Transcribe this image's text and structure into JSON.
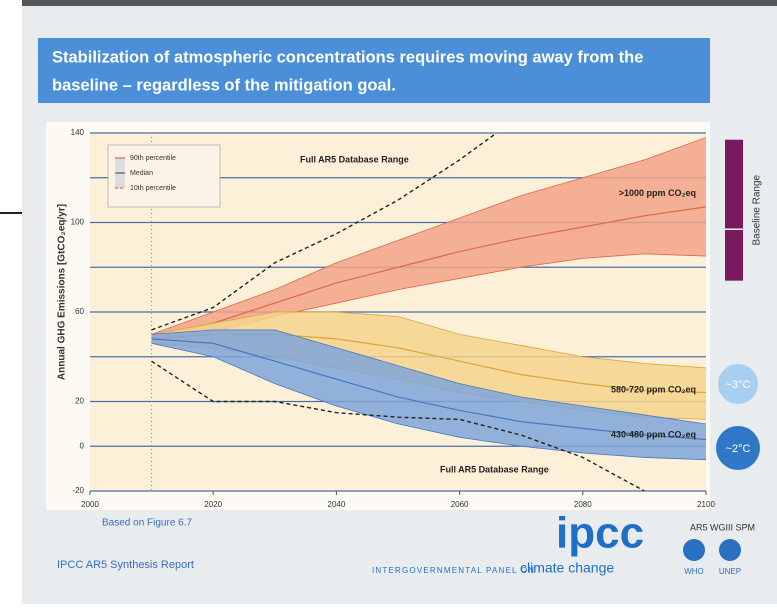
{
  "slide": {
    "title_lines": [
      "Stabilization of atmospheric concentrations requires moving away from the",
      "baseline – regardless of the mitigation goal."
    ],
    "source_note": "Based on Figure 6.7",
    "report": "IPCC AR5 Synthesis Report",
    "logo": "ipcc",
    "panel_text": "INTERGOVERNMENTAL PANEL ON",
    "panel_text_emphasis": "climate change",
    "spm": "AR5 WGIII SPM",
    "org_1": "WHO",
    "org_2": "UNEP",
    "temp_high": "~3°C",
    "temp_low": "~2°C"
  },
  "chart_data": {
    "type": "band",
    "y_label": "Annual GHG Emissions [GtCO₂eq/yr]",
    "x": [
      2010,
      2020,
      2030,
      2040,
      2050,
      2060,
      2070,
      2080,
      2090,
      2100
    ],
    "xlim": [
      2000,
      2100
    ],
    "xticks": [
      2000,
      2020,
      2040,
      2060,
      2080,
      2100
    ],
    "ylim": [
      -20,
      140
    ],
    "yticks": [
      -20,
      0,
      20,
      60,
      100,
      140
    ],
    "minor_yticks": [
      40,
      80,
      120
    ],
    "grid": true,
    "reference_x": 2010,
    "legend": [
      "90th percentile",
      "Median",
      "10th percentile"
    ],
    "series": [
      {
        "name": ">1000 ppm CO₂eq",
        "color": "#f2a387",
        "line_color": "#d9694d",
        "upper": [
          50,
          60,
          70,
          82,
          92,
          102,
          112,
          120,
          128,
          138
        ],
        "median": [
          48,
          55,
          64,
          73,
          80,
          87,
          93,
          98,
          103,
          107
        ],
        "lower": [
          46,
          51,
          58,
          64,
          70,
          75,
          80,
          84,
          86,
          85
        ]
      },
      {
        "name": "580-720 ppm CO₂eq",
        "color": "#f5d38d",
        "line_color": "#d9a43c",
        "upper": [
          50,
          55,
          60,
          60,
          58,
          50,
          45,
          40,
          37,
          35
        ],
        "median": [
          48,
          50,
          50,
          48,
          44,
          38,
          32,
          28,
          25,
          24
        ],
        "lower": [
          46,
          44,
          40,
          35,
          30,
          24,
          20,
          16,
          13,
          12
        ]
      },
      {
        "name": "430-480 ppm CO₂eq",
        "color": "#7fa6d9",
        "line_color": "#4a76bf",
        "upper": [
          50,
          52,
          52,
          44,
          36,
          28,
          22,
          18,
          14,
          10
        ],
        "median": [
          48,
          46,
          38,
          30,
          22,
          16,
          11,
          8,
          5,
          3
        ],
        "lower": [
          46,
          40,
          28,
          18,
          10,
          4,
          0,
          -3,
          -5,
          -6
        ]
      }
    ],
    "ranges": [
      {
        "name": "Full AR5 Database Range",
        "x": [
          2010,
          2020,
          2030,
          2040,
          2050,
          2060,
          2066
        ],
        "values": [
          52,
          62,
          82,
          95,
          110,
          128,
          140
        ]
      },
      {
        "name": "Full AR5 Database Range",
        "x": [
          2010,
          2020,
          2030,
          2040,
          2050,
          2060,
          2070,
          2080,
          2090
        ],
        "values": [
          38,
          20,
          20,
          15,
          13,
          12,
          5,
          -5,
          -20
        ]
      }
    ],
    "baseline_range": {
      "label": "Baseline Range",
      "color": "#7a1a5e",
      "low": 74,
      "high": 137,
      "median": 97
    }
  }
}
